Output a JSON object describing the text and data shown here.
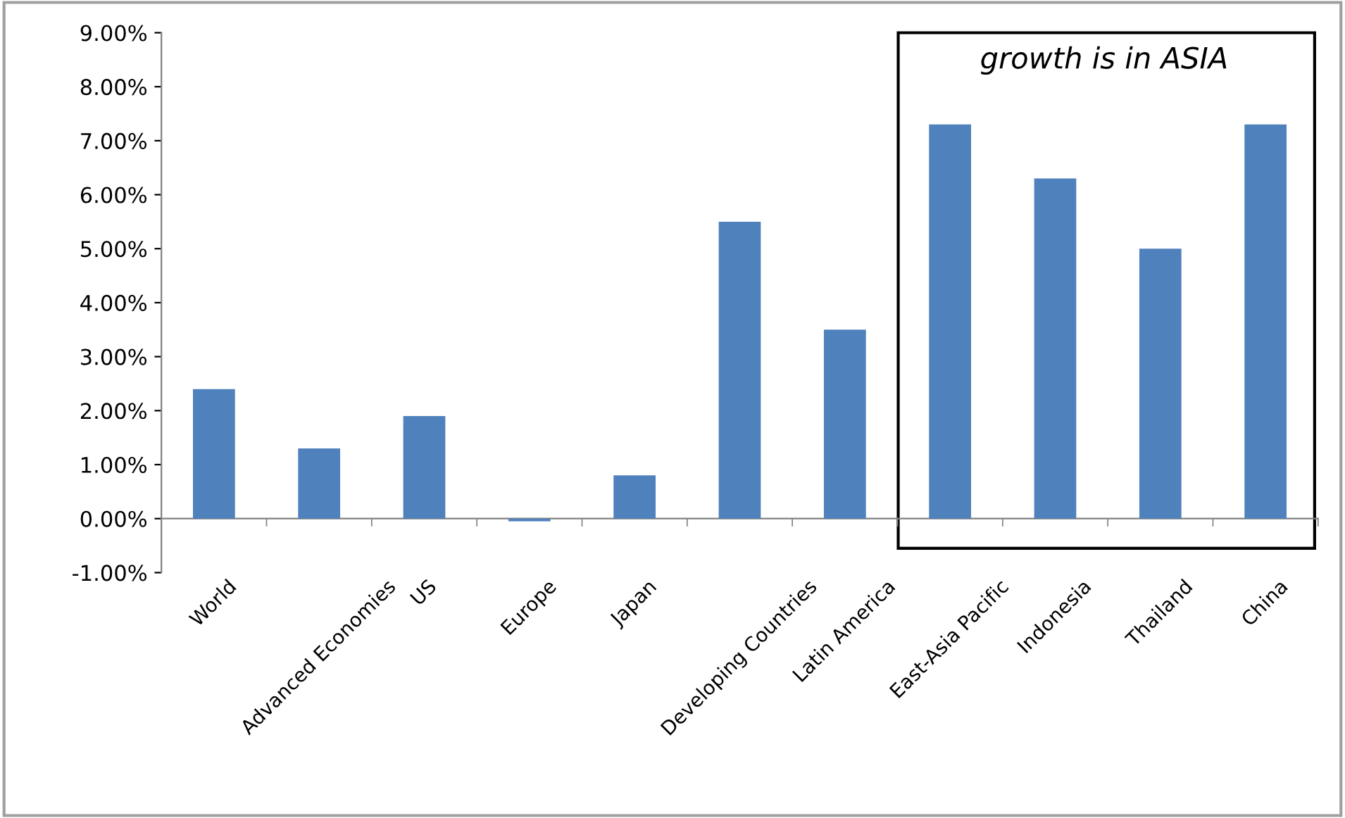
{
  "chart_data": {
    "type": "bar",
    "categories": [
      "World",
      "Advanced Economies",
      "US",
      "Europe",
      "Japan",
      "Developing Countries",
      "Latin America",
      "East-Asia Pacific",
      "Indonesia",
      "Thailand",
      "China"
    ],
    "values": [
      2.4,
      1.3,
      1.9,
      -0.05,
      0.8,
      5.5,
      3.5,
      7.3,
      6.3,
      5.0,
      7.3
    ],
    "color": "#4f81bd",
    "ylim": [
      -1,
      9
    ],
    "yticks": [
      {
        "value": -1,
        "label": "-1.00%"
      },
      {
        "value": 0,
        "label": "0.00%"
      },
      {
        "value": 1,
        "label": "1.00%"
      },
      {
        "value": 2,
        "label": "2.00%"
      },
      {
        "value": 3,
        "label": "3.00%"
      },
      {
        "value": 4,
        "label": "4.00%"
      },
      {
        "value": 5,
        "label": "5.00%"
      },
      {
        "value": 6,
        "label": "6.00%"
      },
      {
        "value": 7,
        "label": "7.00%"
      },
      {
        "value": 8,
        "label": "8.00%"
      },
      {
        "value": 9,
        "label": "9.00%"
      }
    ],
    "annotations": [
      "growth is in ASIA"
    ],
    "legend": false
  }
}
